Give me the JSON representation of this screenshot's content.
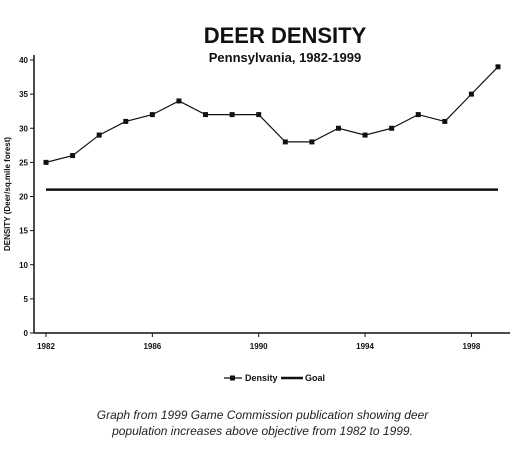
{
  "chart_data": {
    "type": "line",
    "title": "DEER DENSITY",
    "subtitle": "Pennsylvania, 1982-1999",
    "ylabel": "DENSITY (Deer/sq.mile forest)",
    "xlabel": "",
    "x": [
      1982,
      1983,
      1984,
      1985,
      1986,
      1987,
      1988,
      1989,
      1990,
      1991,
      1992,
      1993,
      1994,
      1995,
      1996,
      1997,
      1998,
      1999
    ],
    "xlim": [
      1982,
      1999
    ],
    "xticks": [
      1982,
      1986,
      1990,
      1994,
      1998
    ],
    "ylim": [
      0,
      40
    ],
    "yticks": [
      0,
      5,
      10,
      15,
      20,
      25,
      30,
      35,
      40
    ],
    "grid": false,
    "legend_position": "bottom-center",
    "series": [
      {
        "name": "Density",
        "marker": "square",
        "color": "#111111",
        "values": [
          25,
          26,
          29,
          31,
          32,
          34,
          32,
          32,
          32,
          28,
          28,
          30,
          29,
          30,
          32,
          31,
          35,
          39
        ]
      },
      {
        "name": "Goal",
        "marker": "none",
        "color": "#111111",
        "values": [
          21,
          21,
          21,
          21,
          21,
          21,
          21,
          21,
          21,
          21,
          21,
          21,
          21,
          21,
          21,
          21,
          21,
          21
        ]
      }
    ]
  },
  "caption": {
    "line1": "Graph from 1999 Game Commission publication showing deer",
    "line2": "population increases above objective from 1982 to 1999."
  }
}
